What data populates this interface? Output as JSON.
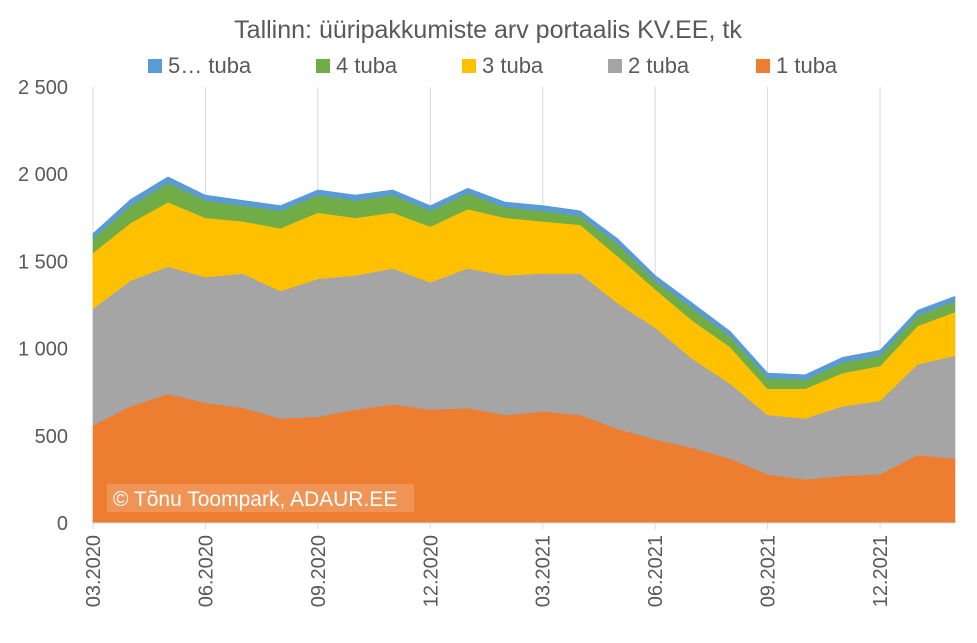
{
  "chart_data": {
    "type": "area",
    "stacked": true,
    "title": "Tallinn: üüripakkumiste arv portaalis KV.EE, tk",
    "xlabel": "",
    "ylabel": "",
    "ylim": [
      0,
      2500
    ],
    "y_ticks": [
      "0",
      "500",
      "1 000",
      "1 500",
      "2 000",
      "2 500"
    ],
    "y_tick_values": [
      0,
      500,
      1000,
      1500,
      2000,
      2500
    ],
    "x_ticks": [
      "03.2020",
      "06.2020",
      "09.2020",
      "12.2020",
      "03.2021",
      "06.2021",
      "09.2021",
      "12.2021"
    ],
    "x_tick_index": [
      0,
      3,
      6,
      9,
      12,
      15,
      18,
      21
    ],
    "x": [
      "03.2020",
      "04.2020",
      "05.2020",
      "06.2020",
      "07.2020",
      "08.2020",
      "09.2020",
      "10.2020",
      "11.2020",
      "12.2020",
      "01.2021",
      "02.2021",
      "03.2021",
      "04.2021",
      "05.2021",
      "06.2021",
      "07.2021",
      "08.2021",
      "09.2021",
      "10.2021",
      "11.2021",
      "12.2021",
      "01.2022",
      "02.2022"
    ],
    "grid": "vertical",
    "legend_position": "top",
    "watermark": "© Tõnu Toompark, ADAUR.EE",
    "series": [
      {
        "name": "1 tuba",
        "color": "#ed7d31",
        "values": [
          560,
          670,
          740,
          690,
          660,
          600,
          610,
          650,
          680,
          650,
          660,
          620,
          640,
          620,
          540,
          480,
          430,
          370,
          280,
          250,
          270,
          280,
          390,
          370
        ]
      },
      {
        "name": "2 tuba",
        "color": "#a5a5a5",
        "values": [
          670,
          720,
          730,
          720,
          770,
          730,
          790,
          770,
          780,
          730,
          800,
          800,
          790,
          810,
          720,
          640,
          510,
          430,
          340,
          350,
          400,
          420,
          520,
          590
        ]
      },
      {
        "name": "3 tuba",
        "color": "#ffc000",
        "values": [
          320,
          330,
          370,
          340,
          300,
          360,
          380,
          330,
          320,
          320,
          340,
          330,
          300,
          280,
          270,
          220,
          220,
          210,
          150,
          170,
          190,
          200,
          220,
          250
        ]
      },
      {
        "name": "4 tuba",
        "color": "#70ad47",
        "values": [
          80,
          100,
          110,
          100,
          90,
          100,
          100,
          100,
          100,
          90,
          90,
          60,
          60,
          50,
          70,
          50,
          70,
          60,
          60,
          50,
          60,
          60,
          60,
          60
        ]
      },
      {
        "name": "5… tuba",
        "color": "#5b9bd5",
        "values": [
          30,
          35,
          35,
          30,
          30,
          30,
          30,
          30,
          30,
          30,
          30,
          30,
          30,
          30,
          30,
          30,
          30,
          30,
          30,
          30,
          30,
          30,
          30,
          30
        ]
      }
    ]
  }
}
